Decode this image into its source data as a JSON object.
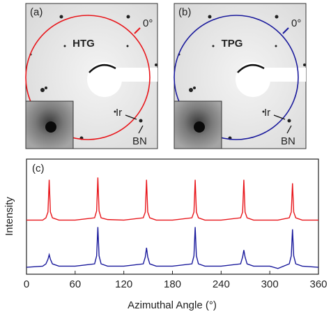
{
  "panels": [
    {
      "label": "(a)",
      "title": "HTG",
      "angle_label": "0°",
      "spot_labels": [
        "Ir",
        "BN"
      ],
      "color": "#e8161b"
    },
    {
      "label": "(b)",
      "title": "TPG",
      "angle_label": "0°",
      "spot_labels": [
        "Ir",
        "BN"
      ],
      "color": "#1a1a9c"
    }
  ],
  "chart_data": {
    "type": "line",
    "panel_label": "(c)",
    "xlabel": "Azimuthal Angle (°)",
    "ylabel": "Intensity",
    "x": [
      0,
      20,
      24,
      26.5,
      28,
      29.5,
      32,
      40,
      60,
      84,
      86.5,
      88,
      89.5,
      92,
      100,
      120,
      144,
      146.5,
      148,
      149.5,
      152,
      160,
      180,
      204,
      206.5,
      208,
      209.5,
      212,
      220,
      240,
      264,
      266.5,
      268,
      269.5,
      272,
      280,
      300,
      310,
      324,
      326.5,
      328,
      329.5,
      332,
      340,
      360
    ],
    "series": [
      {
        "color": "#e8161b",
        "values": [
          4.7,
          4.7,
          4.9,
          5.4,
          8.2,
          5.4,
          4.9,
          4.7,
          4.7,
          4.9,
          5.5,
          8.4,
          5.5,
          4.9,
          4.75,
          4.7,
          4.9,
          5.4,
          8.2,
          5.4,
          4.9,
          4.7,
          4.7,
          4.9,
          5.4,
          8.2,
          5.4,
          4.9,
          4.7,
          4.7,
          4.9,
          5.4,
          8.2,
          5.4,
          4.9,
          4.7,
          4.7,
          4.7,
          4.9,
          5.4,
          7.9,
          5.4,
          4.9,
          4.7,
          4.7
        ]
      },
      {
        "color": "#1a1a9c",
        "values": [
          0.6,
          0.7,
          0.9,
          1.3,
          1.7,
          1.3,
          0.9,
          0.7,
          0.7,
          0.9,
          1.6,
          4.1,
          1.6,
          0.9,
          0.7,
          0.7,
          0.9,
          1.5,
          2.3,
          1.5,
          0.9,
          0.7,
          0.7,
          0.9,
          1.6,
          4.1,
          1.6,
          0.9,
          0.7,
          0.7,
          0.9,
          1.5,
          2.1,
          1.5,
          0.9,
          0.7,
          0.7,
          0.5,
          0.9,
          1.6,
          3.9,
          1.6,
          0.9,
          0.7,
          0.6
        ]
      }
    ],
    "xlim": [
      0,
      360
    ],
    "xticks": [
      0,
      60,
      120,
      180,
      240,
      300,
      360
    ],
    "ylim": [
      0,
      10
    ]
  }
}
